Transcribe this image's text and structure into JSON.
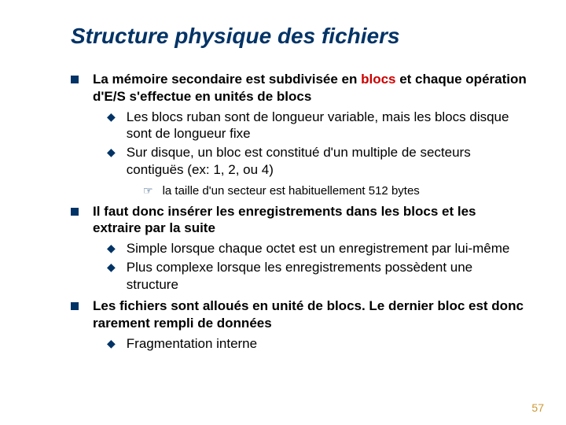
{
  "colors": {
    "title": "#003366",
    "bullet": "#003366",
    "highlight": "#cc0000",
    "pageNum": "#cc9933",
    "background": "#ffffff",
    "text": "#000000"
  },
  "fonts": {
    "titleSize": 28,
    "bodySize": 17,
    "subSize": 15
  },
  "title": "Structure physique des fichiers",
  "items": [
    {
      "level": 1,
      "prefix": "La mémoire secondaire est subdivisée en ",
      "highlight": "blocs",
      "suffix": " et chaque opération d'E/S s'effectue en unités de blocs"
    },
    {
      "level": 2,
      "text": "Les blocs ruban sont de longueur variable, mais les blocs disque sont de longueur fixe"
    },
    {
      "level": 2,
      "text": "Sur disque, un bloc est constitué d'un multiple de secteurs contiguës (ex: 1, 2, ou 4)"
    },
    {
      "level": 3,
      "text": "la taille d'un secteur est habituellement 512 bytes"
    },
    {
      "level": 1,
      "prefix": "Il faut donc insérer les enregistrements dans les blocs et les extraire par la suite",
      "highlight": "",
      "suffix": ""
    },
    {
      "level": 2,
      "text": "Simple lorsque chaque octet est un enregistrement par lui-même"
    },
    {
      "level": 2,
      "text": "Plus complexe lorsque les enregistrements possèdent une structure"
    },
    {
      "level": 1,
      "prefix": "Les fichiers sont alloués en unité de blocs. Le dernier bloc est donc rarement rempli de données",
      "highlight": "",
      "suffix": ""
    },
    {
      "level": 2,
      "text": "Fragmentation interne"
    }
  ],
  "pageNumber": "57"
}
